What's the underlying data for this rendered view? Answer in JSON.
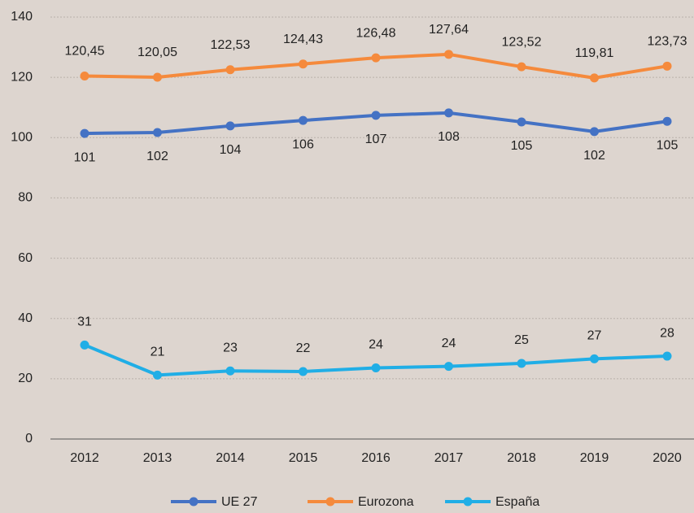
{
  "chart_data": {
    "type": "line",
    "categories": [
      "2012",
      "2013",
      "2014",
      "2015",
      "2016",
      "2017",
      "2018",
      "2019",
      "2020"
    ],
    "series": [
      {
        "name": "UE 27",
        "color": "#4472c4",
        "values": [
          101.4,
          101.7,
          103.9,
          105.7,
          107.4,
          108.2,
          105.2,
          102.0,
          105.4
        ],
        "value_labels": [
          "101",
          "102",
          "104",
          "106",
          "107",
          "108",
          "105",
          "102",
          "105"
        ]
      },
      {
        "name": "Eurozona",
        "color": "#f58a3c",
        "values": [
          120.45,
          120.05,
          122.53,
          124.43,
          126.48,
          127.64,
          123.52,
          119.81,
          123.73
        ],
        "value_labels": [
          "120,45",
          "120,05",
          "122,53",
          "124,43",
          "126,48",
          "127,64",
          "123,52",
          "119,81",
          "123,73"
        ]
      },
      {
        "name": "España",
        "color": "#20aee6",
        "values": [
          31.2,
          21.2,
          22.6,
          22.4,
          23.6,
          24.1,
          25.1,
          26.6,
          27.5
        ],
        "value_labels": [
          "31",
          "21",
          "23",
          "22",
          "24",
          "24",
          "25",
          "27",
          "28"
        ]
      }
    ],
    "ylim": [
      0,
      140
    ],
    "yticks": [
      0,
      20,
      40,
      60,
      80,
      100,
      120,
      140
    ],
    "grid": true,
    "legend": "bottom"
  }
}
